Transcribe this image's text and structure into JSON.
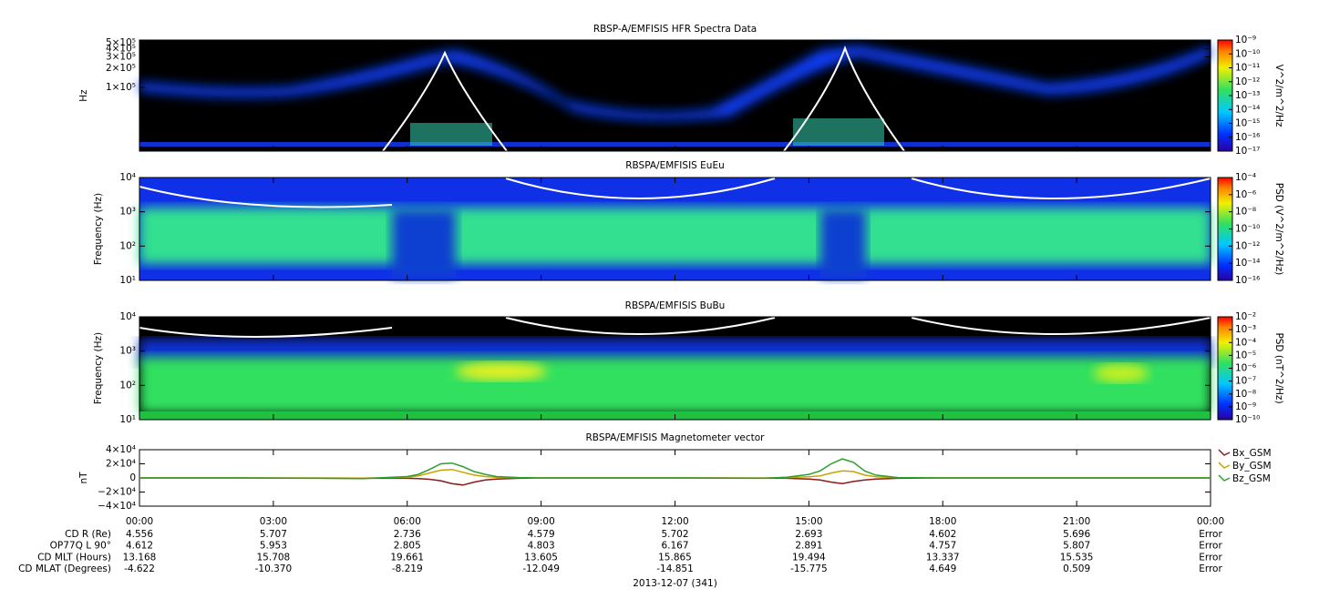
{
  "chart_data": [
    {
      "type": "spectrogram",
      "title": "RBSP-A/EMFISIS  HFR Spectra Data",
      "ylabel": "Hz",
      "log_y": true,
      "ylim": [
        10000,
        550000
      ],
      "yticks": [
        {
          "value": 100000,
          "label": "1×10⁵"
        },
        {
          "value": 200000,
          "label": "2×10⁵"
        },
        {
          "value": 300000,
          "label": "3×10⁵"
        },
        {
          "value": 400000,
          "label": "4×10⁵"
        },
        {
          "value": 500000,
          "label": "5×10⁵"
        }
      ],
      "colorbar": {
        "label": "V^2/m^2/Hz",
        "lim": [
          1e-17,
          1e-09
        ],
        "ticks": [
          {
            "value": 1e-17,
            "label": "10⁻¹⁷"
          },
          {
            "value": 1e-16,
            "label": "10⁻¹⁶"
          },
          {
            "value": 1e-15,
            "label": "10⁻¹⁵"
          },
          {
            "value": 1e-14,
            "label": "10⁻¹⁴"
          },
          {
            "value": 1e-13,
            "label": "10⁻¹³"
          },
          {
            "value": 1e-12,
            "label": "10⁻¹²"
          },
          {
            "value": 1e-11,
            "label": "10⁻¹¹"
          },
          {
            "value": 1e-10,
            "label": "10⁻¹⁰"
          },
          {
            "value": 1e-09,
            "label": "10⁻⁹"
          }
        ]
      }
    },
    {
      "type": "spectrogram",
      "title": "RBSPA/EMFISIS  EuEu",
      "ylabel": "Frequency (Hz)",
      "log_y": true,
      "ylim": [
        10,
        10000
      ],
      "yticks": [
        {
          "value": 10,
          "label": "10¹"
        },
        {
          "value": 100,
          "label": "10²"
        },
        {
          "value": 1000,
          "label": "10³"
        },
        {
          "value": 10000,
          "label": "10⁴"
        }
      ],
      "colorbar": {
        "label": "PSD (V^2/m^2/Hz)",
        "lim": [
          1e-16,
          0.0001
        ],
        "ticks": [
          {
            "value": 1e-16,
            "label": "10⁻¹⁶"
          },
          {
            "value": 1e-14,
            "label": "10⁻¹⁴"
          },
          {
            "value": 1e-12,
            "label": "10⁻¹²"
          },
          {
            "value": 1e-10,
            "label": "10⁻¹⁰"
          },
          {
            "value": 1e-08,
            "label": "10⁻⁸"
          },
          {
            "value": 1e-06,
            "label": "10⁻⁶"
          },
          {
            "value": 0.0001,
            "label": "10⁻⁴"
          }
        ]
      }
    },
    {
      "type": "spectrogram",
      "title": "RBSPA/EMFISIS  BuBu",
      "ylabel": "Frequency (Hz)",
      "log_y": true,
      "ylim": [
        10,
        10000
      ],
      "yticks": [
        {
          "value": 10,
          "label": "10¹"
        },
        {
          "value": 100,
          "label": "10²"
        },
        {
          "value": 1000,
          "label": "10³"
        },
        {
          "value": 10000,
          "label": "10⁴"
        }
      ],
      "colorbar": {
        "label": "PSD (nT^2/Hz)",
        "lim": [
          1e-10,
          0.01
        ],
        "ticks": [
          {
            "value": 1e-10,
            "label": "10⁻¹⁰"
          },
          {
            "value": 1e-09,
            "label": "10⁻⁹"
          },
          {
            "value": 1e-08,
            "label": "10⁻⁸"
          },
          {
            "value": 1e-07,
            "label": "10⁻⁷"
          },
          {
            "value": 1e-06,
            "label": "10⁻⁶"
          },
          {
            "value": 1e-05,
            "label": "10⁻⁵"
          },
          {
            "value": 0.0001,
            "label": "10⁻⁴"
          },
          {
            "value": 0.001,
            "label": "10⁻³"
          },
          {
            "value": 0.01,
            "label": "10⁻²"
          }
        ]
      }
    },
    {
      "type": "line",
      "title": "RBSPA/EMFISIS  Magnetometer vector",
      "ylabel": "nT",
      "xlim": [
        0,
        24
      ],
      "xticks": [
        {
          "value": 0,
          "label": "00:00"
        },
        {
          "value": 3,
          "label": "03:00"
        },
        {
          "value": 6,
          "label": "06:00"
        },
        {
          "value": 9,
          "label": "09:00"
        },
        {
          "value": 12,
          "label": "12:00"
        },
        {
          "value": 15,
          "label": "15:00"
        },
        {
          "value": 18,
          "label": "18:00"
        },
        {
          "value": 21,
          "label": "21:00"
        },
        {
          "value": 24,
          "label": "00:00"
        }
      ],
      "ylim": [
        -40000,
        40000
      ],
      "yticks": [
        {
          "value": -40000,
          "label": "−4×10⁴"
        },
        {
          "value": -20000,
          "label": "−2×10⁴"
        },
        0,
        {
          "value": 20000,
          "label": "2×10⁴"
        },
        {
          "value": 40000,
          "label": "4×10⁴"
        }
      ],
      "x": [
        0,
        2,
        4,
        5,
        6,
        6.25,
        6.5,
        6.75,
        7,
        7.25,
        7.5,
        7.75,
        8,
        8.5,
        9,
        10,
        12,
        14,
        14.5,
        15,
        15.25,
        15.5,
        15.75,
        16,
        16.25,
        16.5,
        17,
        18,
        20,
        22,
        24
      ],
      "series": [
        {
          "name": "Bx_GSM",
          "color": "#8b1a1a",
          "values": [
            0,
            0,
            -300,
            -500,
            -500,
            -1000,
            -2000,
            -4000,
            -8000,
            -10000,
            -6000,
            -3000,
            -1500,
            -500,
            0,
            0,
            0,
            -300,
            -500,
            -1500,
            -3000,
            -6000,
            -8000,
            -5000,
            -3000,
            -1500,
            -500,
            0,
            0,
            0,
            0
          ]
        },
        {
          "name": "By_GSM",
          "color": "#c9a400",
          "values": [
            0,
            0,
            0,
            -300,
            1000,
            3000,
            7000,
            11000,
            12000,
            8000,
            4000,
            2000,
            800,
            200,
            0,
            0,
            0,
            0,
            500,
            1500,
            3000,
            7000,
            10000,
            9000,
            4000,
            1500,
            300,
            0,
            0,
            0,
            0
          ]
        },
        {
          "name": "Bz_GSM",
          "color": "#2ca02c",
          "values": [
            0,
            0,
            -500,
            -1000,
            2000,
            5000,
            12000,
            20000,
            21000,
            16000,
            9000,
            5000,
            2000,
            500,
            0,
            0,
            0,
            -500,
            1000,
            5000,
            10000,
            20000,
            27000,
            22000,
            10000,
            4000,
            500,
            0,
            0,
            0,
            0
          ]
        }
      ]
    }
  ],
  "ephemeris": {
    "rows": [
      {
        "label": "CD R (Re)",
        "values": [
          "4.556",
          "5.707",
          "2.736",
          "4.579",
          "5.702",
          "2.693",
          "4.602",
          "5.696",
          "Error"
        ]
      },
      {
        "label": "OP77Q L 90°",
        "values": [
          "4.612",
          "5.953",
          "2.805",
          "4.803",
          "6.167",
          "2.891",
          "4.757",
          "5.807",
          "Error"
        ]
      },
      {
        "label": "CD MLT (Hours)",
        "values": [
          "13.168",
          "15.708",
          "19.661",
          "13.605",
          "15.865",
          "19.494",
          "13.337",
          "15.535",
          "Error"
        ]
      },
      {
        "label": "CD MLAT (Degrees)",
        "values": [
          "-4.622",
          "-10.370",
          "-8.219",
          "-12.049",
          "-14.851",
          "-15.775",
          "4.649",
          "0.509",
          "Error"
        ]
      }
    ],
    "date": "2013-12-07 (341)"
  }
}
